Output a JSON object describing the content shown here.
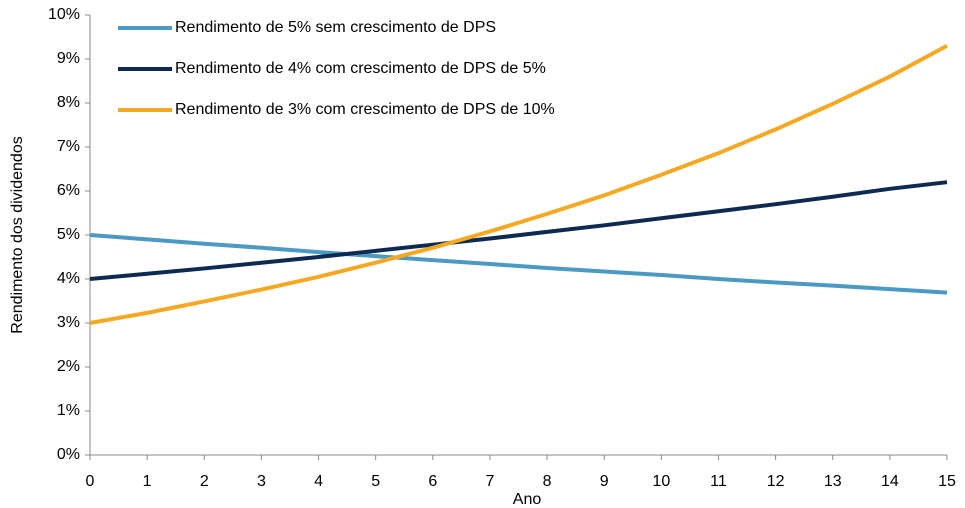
{
  "chart_data": {
    "type": "line",
    "xlabel": "Ano",
    "ylabel": "Rendimento  dos dividendos",
    "x": [
      0,
      1,
      2,
      3,
      4,
      5,
      6,
      7,
      8,
      9,
      10,
      11,
      12,
      13,
      14,
      15
    ],
    "xlim": [
      0,
      15
    ],
    "xticks": [
      0,
      1,
      2,
      3,
      4,
      5,
      6,
      7,
      8,
      9,
      10,
      11,
      12,
      13,
      14,
      15
    ],
    "ylim": [
      0,
      10
    ],
    "yticks": [
      {
        "value": 0,
        "label": "0%"
      },
      {
        "value": 1,
        "label": "1%"
      },
      {
        "value": 2,
        "label": "2%"
      },
      {
        "value": 3,
        "label": "3%"
      },
      {
        "value": 4,
        "label": "4%"
      },
      {
        "value": 5,
        "label": "5%"
      },
      {
        "value": 6,
        "label": "6%"
      },
      {
        "value": 7,
        "label": "7%"
      },
      {
        "value": 8,
        "label": "8%"
      },
      {
        "value": 9,
        "label": "9%"
      },
      {
        "value": 10,
        "label": "10%"
      }
    ],
    "grid": false,
    "legend": "upper left",
    "series": [
      {
        "name": "Rendimento de 5% sem crescimento de DPS",
        "color": "#4a9ac4",
        "values": [
          5,
          4.9,
          4.8,
          4.71,
          4.61,
          4.52,
          4.43,
          4.34,
          4.25,
          4.17,
          4.09,
          4.0,
          3.92,
          3.85,
          3.77,
          3.69
        ]
      },
      {
        "name": "Rendimento de 4% com crescimento de DPS de 5%",
        "color": "#0d2b52",
        "values": [
          4,
          4.12,
          4.24,
          4.37,
          4.5,
          4.64,
          4.78,
          4.92,
          5.07,
          5.22,
          5.38,
          5.54,
          5.7,
          5.87,
          6.05,
          6.2
        ]
      },
      {
        "name": "Rendimento de 3% com crescimento de DPS de 10%",
        "color": "#f7a823",
        "values": [
          3,
          3.23,
          3.49,
          3.76,
          4.05,
          4.37,
          4.71,
          5.08,
          5.48,
          5.9,
          6.37,
          6.86,
          7.4,
          7.98,
          8.6,
          9.3
        ]
      }
    ]
  }
}
